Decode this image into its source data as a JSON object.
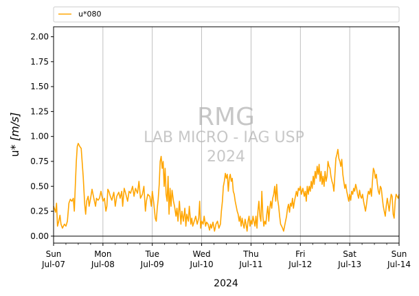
{
  "chart_data": {
    "type": "line",
    "xlabel": "2024",
    "ylabel_main": "u* ",
    "ylabel_unit": "[m/s]",
    "ylim": [
      -0.07,
      2.1
    ],
    "yticks": [
      0.0,
      0.25,
      0.5,
      0.75,
      1.0,
      1.25,
      1.5,
      1.75,
      2.0
    ],
    "ytick_labels": [
      "0.00",
      "0.25",
      "0.50",
      "0.75",
      "1.00",
      "1.25",
      "1.50",
      "1.75",
      "2.00"
    ],
    "xlim_days": [
      0,
      7
    ],
    "x_unit": "days from Sun Jul-07 00:00",
    "xticks": [
      {
        "day": "Sun",
        "date": "Jul-07"
      },
      {
        "day": "Mon",
        "date": "Jul-08"
      },
      {
        "day": "Tue",
        "date": "Jul-09"
      },
      {
        "day": "Wed",
        "date": "Jul-10"
      },
      {
        "day": "Thu",
        "date": "Jul-11"
      },
      {
        "day": "Fri",
        "date": "Jul-12"
      },
      {
        "day": "Sat",
        "date": "Jul-13"
      },
      {
        "day": "Sun",
        "date": "Jul-14"
      }
    ],
    "grid": "vertical at day boundaries",
    "hline": 0,
    "legend_placement": "top, above plot",
    "series": [
      {
        "name": "u*080",
        "color": "#ffa500",
        "points": [
          [
            0.0,
            0.3
          ],
          [
            0.04,
            0.24
          ],
          [
            0.06,
            0.33
          ],
          [
            0.08,
            0.1
          ],
          [
            0.1,
            0.14
          ],
          [
            0.13,
            0.21
          ],
          [
            0.15,
            0.12
          ],
          [
            0.18,
            0.08
          ],
          [
            0.22,
            0.12
          ],
          [
            0.25,
            0.1
          ],
          [
            0.28,
            0.15
          ],
          [
            0.31,
            0.33
          ],
          [
            0.34,
            0.37
          ],
          [
            0.37,
            0.35
          ],
          [
            0.4,
            0.38
          ],
          [
            0.42,
            0.25
          ],
          [
            0.44,
            0.5
          ],
          [
            0.46,
            0.75
          ],
          [
            0.48,
            0.9
          ],
          [
            0.5,
            0.93
          ],
          [
            0.53,
            0.9
          ],
          [
            0.56,
            0.88
          ],
          [
            0.6,
            0.6
          ],
          [
            0.63,
            0.32
          ],
          [
            0.65,
            0.22
          ],
          [
            0.67,
            0.35
          ],
          [
            0.7,
            0.4
          ],
          [
            0.72,
            0.3
          ],
          [
            0.75,
            0.38
          ],
          [
            0.78,
            0.47
          ],
          [
            0.82,
            0.37
          ],
          [
            0.85,
            0.3
          ],
          [
            0.87,
            0.38
          ],
          [
            0.9,
            0.36
          ],
          [
            0.93,
            0.38
          ],
          [
            0.96,
            0.45
          ],
          [
            1.0,
            0.35
          ],
          [
            1.03,
            0.38
          ],
          [
            1.06,
            0.25
          ],
          [
            1.08,
            0.3
          ],
          [
            1.1,
            0.47
          ],
          [
            1.12,
            0.45
          ],
          [
            1.15,
            0.4
          ],
          [
            1.18,
            0.36
          ],
          [
            1.22,
            0.44
          ],
          [
            1.25,
            0.3
          ],
          [
            1.28,
            0.4
          ],
          [
            1.32,
            0.44
          ],
          [
            1.35,
            0.38
          ],
          [
            1.38,
            0.45
          ],
          [
            1.4,
            0.3
          ],
          [
            1.43,
            0.48
          ],
          [
            1.46,
            0.43
          ],
          [
            1.5,
            0.35
          ],
          [
            1.53,
            0.45
          ],
          [
            1.56,
            0.43
          ],
          [
            1.6,
            0.5
          ],
          [
            1.63,
            0.4
          ],
          [
            1.66,
            0.48
          ],
          [
            1.7,
            0.43
          ],
          [
            1.73,
            0.55
          ],
          [
            1.76,
            0.38
          ],
          [
            1.8,
            0.42
          ],
          [
            1.83,
            0.5
          ],
          [
            1.86,
            0.25
          ],
          [
            1.88,
            0.35
          ],
          [
            1.91,
            0.42
          ],
          [
            1.95,
            0.4
          ],
          [
            1.98,
            0.3
          ],
          [
            2.0,
            0.45
          ],
          [
            2.03,
            0.33
          ],
          [
            2.06,
            0.18
          ],
          [
            2.08,
            0.15
          ],
          [
            2.1,
            0.28
          ],
          [
            2.12,
            0.37
          ],
          [
            2.14,
            0.52
          ],
          [
            2.16,
            0.75
          ],
          [
            2.18,
            0.8
          ],
          [
            2.2,
            0.68
          ],
          [
            2.22,
            0.75
          ],
          [
            2.24,
            0.5
          ],
          [
            2.26,
            0.68
          ],
          [
            2.28,
            0.42
          ],
          [
            2.3,
            0.35
          ],
          [
            2.32,
            0.6
          ],
          [
            2.34,
            0.22
          ],
          [
            2.36,
            0.48
          ],
          [
            2.38,
            0.3
          ],
          [
            2.4,
            0.46
          ],
          [
            2.43,
            0.35
          ],
          [
            2.45,
            0.3
          ],
          [
            2.48,
            0.2
          ],
          [
            2.5,
            0.28
          ],
          [
            2.52,
            0.15
          ],
          [
            2.55,
            0.35
          ],
          [
            2.58,
            0.12
          ],
          [
            2.6,
            0.25
          ],
          [
            2.63,
            0.15
          ],
          [
            2.66,
            0.28
          ],
          [
            2.68,
            0.1
          ],
          [
            2.7,
            0.22
          ],
          [
            2.73,
            0.15
          ],
          [
            2.75,
            0.3
          ],
          [
            2.78,
            0.12
          ],
          [
            2.8,
            0.18
          ],
          [
            2.82,
            0.1
          ],
          [
            2.85,
            0.15
          ],
          [
            2.88,
            0.2
          ],
          [
            2.91,
            0.12
          ],
          [
            2.94,
            0.18
          ],
          [
            2.96,
            0.35
          ],
          [
            2.98,
            0.08
          ],
          [
            3.0,
            0.15
          ],
          [
            3.03,
            0.12
          ],
          [
            3.05,
            0.2
          ],
          [
            3.08,
            0.1
          ],
          [
            3.1,
            0.14
          ],
          [
            3.13,
            0.12
          ],
          [
            3.16,
            0.06
          ],
          [
            3.18,
            0.12
          ],
          [
            3.2,
            0.08
          ],
          [
            3.23,
            0.14
          ],
          [
            3.26,
            0.05
          ],
          [
            3.29,
            0.12
          ],
          [
            3.32,
            0.15
          ],
          [
            3.35,
            0.08
          ],
          [
            3.38,
            0.12
          ],
          [
            3.4,
            0.25
          ],
          [
            3.42,
            0.35
          ],
          [
            3.44,
            0.5
          ],
          [
            3.46,
            0.55
          ],
          [
            3.48,
            0.63
          ],
          [
            3.5,
            0.58
          ],
          [
            3.52,
            0.62
          ],
          [
            3.54,
            0.45
          ],
          [
            3.56,
            0.58
          ],
          [
            3.58,
            0.62
          ],
          [
            3.6,
            0.55
          ],
          [
            3.62,
            0.58
          ],
          [
            3.64,
            0.45
          ],
          [
            3.66,
            0.42
          ],
          [
            3.68,
            0.35
          ],
          [
            3.7,
            0.3
          ],
          [
            3.72,
            0.25
          ],
          [
            3.74,
            0.22
          ],
          [
            3.76,
            0.15
          ],
          [
            3.78,
            0.2
          ],
          [
            3.8,
            0.1
          ],
          [
            3.82,
            0.18
          ],
          [
            3.84,
            0.12
          ],
          [
            3.86,
            0.08
          ],
          [
            3.88,
            0.17
          ],
          [
            3.9,
            0.12
          ],
          [
            3.92,
            0.05
          ],
          [
            3.94,
            0.15
          ],
          [
            3.96,
            0.2
          ],
          [
            3.98,
            0.1
          ],
          [
            4.0,
            0.16
          ],
          [
            4.02,
            0.12
          ],
          [
            4.04,
            0.2
          ],
          [
            4.06,
            0.15
          ],
          [
            4.08,
            0.1
          ],
          [
            4.1,
            0.2
          ],
          [
            4.12,
            0.08
          ],
          [
            4.14,
            0.25
          ],
          [
            4.16,
            0.35
          ],
          [
            4.18,
            0.2
          ],
          [
            4.2,
            0.15
          ],
          [
            4.22,
            0.45
          ],
          [
            4.24,
            0.2
          ],
          [
            4.26,
            0.1
          ],
          [
            4.28,
            0.15
          ],
          [
            4.3,
            0.12
          ],
          [
            4.32,
            0.22
          ],
          [
            4.34,
            0.3
          ],
          [
            4.36,
            0.15
          ],
          [
            4.38,
            0.28
          ],
          [
            4.4,
            0.35
          ],
          [
            4.42,
            0.28
          ],
          [
            4.44,
            0.38
          ],
          [
            4.46,
            0.42
          ],
          [
            4.48,
            0.5
          ],
          [
            4.5,
            0.35
          ],
          [
            4.52,
            0.52
          ],
          [
            4.54,
            0.37
          ],
          [
            4.56,
            0.3
          ],
          [
            4.58,
            0.2
          ],
          [
            4.6,
            0.12
          ],
          [
            4.62,
            0.1
          ],
          [
            4.64,
            0.08
          ],
          [
            4.66,
            0.05
          ],
          [
            4.68,
            0.1
          ],
          [
            4.7,
            0.15
          ],
          [
            4.72,
            0.2
          ],
          [
            4.74,
            0.28
          ],
          [
            4.76,
            0.32
          ],
          [
            4.78,
            0.24
          ],
          [
            4.8,
            0.33
          ],
          [
            4.82,
            0.3
          ],
          [
            4.84,
            0.38
          ],
          [
            4.86,
            0.28
          ],
          [
            4.88,
            0.35
          ],
          [
            4.9,
            0.4
          ],
          [
            4.92,
            0.45
          ],
          [
            4.94,
            0.4
          ],
          [
            4.96,
            0.48
          ],
          [
            4.98,
            0.46
          ],
          [
            5.0,
            0.5
          ],
          [
            5.02,
            0.42
          ],
          [
            5.05,
            0.48
          ],
          [
            5.08,
            0.4
          ],
          [
            5.1,
            0.45
          ],
          [
            5.12,
            0.35
          ],
          [
            5.14,
            0.5
          ],
          [
            5.16,
            0.42
          ],
          [
            5.18,
            0.5
          ],
          [
            5.2,
            0.45
          ],
          [
            5.22,
            0.55
          ],
          [
            5.24,
            0.48
          ],
          [
            5.26,
            0.6
          ],
          [
            5.28,
            0.52
          ],
          [
            5.3,
            0.65
          ],
          [
            5.32,
            0.58
          ],
          [
            5.34,
            0.7
          ],
          [
            5.36,
            0.62
          ],
          [
            5.38,
            0.72
          ],
          [
            5.4,
            0.55
          ],
          [
            5.42,
            0.65
          ],
          [
            5.44,
            0.52
          ],
          [
            5.46,
            0.6
          ],
          [
            5.48,
            0.5
          ],
          [
            5.5,
            0.65
          ],
          [
            5.52,
            0.55
          ],
          [
            5.54,
            0.6
          ],
          [
            5.56,
            0.75
          ],
          [
            5.58,
            0.7
          ],
          [
            5.6,
            0.68
          ],
          [
            5.62,
            0.6
          ],
          [
            5.64,
            0.55
          ],
          [
            5.66,
            0.52
          ],
          [
            5.68,
            0.45
          ],
          [
            5.7,
            0.62
          ],
          [
            5.72,
            0.78
          ],
          [
            5.74,
            0.82
          ],
          [
            5.76,
            0.87
          ],
          [
            5.78,
            0.78
          ],
          [
            5.8,
            0.75
          ],
          [
            5.82,
            0.7
          ],
          [
            5.84,
            0.77
          ],
          [
            5.86,
            0.62
          ],
          [
            5.88,
            0.55
          ],
          [
            5.9,
            0.48
          ],
          [
            5.92,
            0.52
          ],
          [
            5.94,
            0.45
          ],
          [
            5.96,
            0.4
          ],
          [
            5.98,
            0.35
          ],
          [
            6.0,
            0.42
          ],
          [
            6.02,
            0.36
          ],
          [
            6.04,
            0.45
          ],
          [
            6.06,
            0.42
          ],
          [
            6.08,
            0.48
          ],
          [
            6.1,
            0.45
          ],
          [
            6.12,
            0.52
          ],
          [
            6.14,
            0.48
          ],
          [
            6.16,
            0.42
          ],
          [
            6.18,
            0.38
          ],
          [
            6.2,
            0.46
          ],
          [
            6.22,
            0.4
          ],
          [
            6.24,
            0.38
          ],
          [
            6.26,
            0.42
          ],
          [
            6.28,
            0.35
          ],
          [
            6.3,
            0.3
          ],
          [
            6.32,
            0.25
          ],
          [
            6.34,
            0.32
          ],
          [
            6.36,
            0.4
          ],
          [
            6.38,
            0.45
          ],
          [
            6.4,
            0.42
          ],
          [
            6.42,
            0.48
          ],
          [
            6.44,
            0.4
          ],
          [
            6.46,
            0.55
          ],
          [
            6.48,
            0.68
          ],
          [
            6.5,
            0.65
          ],
          [
            6.52,
            0.58
          ],
          [
            6.54,
            0.62
          ],
          [
            6.56,
            0.52
          ],
          [
            6.58,
            0.45
          ],
          [
            6.6,
            0.42
          ],
          [
            6.62,
            0.5
          ],
          [
            6.64,
            0.48
          ],
          [
            6.66,
            0.38
          ],
          [
            6.68,
            0.3
          ],
          [
            6.7,
            0.25
          ],
          [
            6.72,
            0.2
          ],
          [
            6.74,
            0.3
          ],
          [
            6.76,
            0.38
          ],
          [
            6.78,
            0.32
          ],
          [
            6.8,
            0.25
          ],
          [
            6.82,
            0.35
          ],
          [
            6.84,
            0.42
          ],
          [
            6.86,
            0.4
          ],
          [
            6.88,
            0.22
          ],
          [
            6.9,
            0.18
          ],
          [
            6.92,
            0.35
          ],
          [
            6.94,
            0.42
          ],
          [
            6.96,
            0.4
          ],
          [
            6.98,
            0.38
          ],
          [
            7.0,
            0.42
          ]
        ]
      }
    ],
    "watermark": {
      "line1": "RMG",
      "line2": "LAB MICRO - IAG USP",
      "line3": "2024"
    }
  }
}
